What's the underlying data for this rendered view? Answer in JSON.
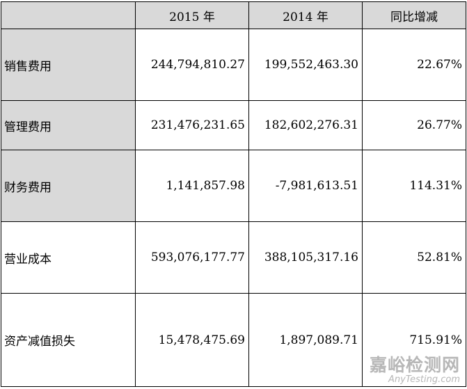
{
  "table": {
    "headers": [
      "",
      "2015 年",
      "2014 年",
      "同比增减"
    ],
    "rows": [
      {
        "label": "销售费用",
        "y2015": "244,794,810.27",
        "y2014": "199,552,463.30",
        "change": "22.67%"
      },
      {
        "label": "管理费用",
        "y2015": "231,476,231.65",
        "y2014": "182,602,276.31",
        "change": "26.77%"
      },
      {
        "label": "财务费用",
        "y2015": "1,141,857.98",
        "y2014": "-7,981,613.51",
        "change": "114.31%"
      },
      {
        "label": "营业成本",
        "y2015": "593,076,177.77",
        "y2014": "388,105,317.16",
        "change": "52.81%"
      },
      {
        "label": "资产减值损失",
        "y2015": "15,478,475.69",
        "y2014": "1,897,089.71",
        "change": "715.91%"
      }
    ]
  },
  "watermark": {
    "text_cn": "嘉峪检测网",
    "text_en": "AnyTesting.com"
  }
}
